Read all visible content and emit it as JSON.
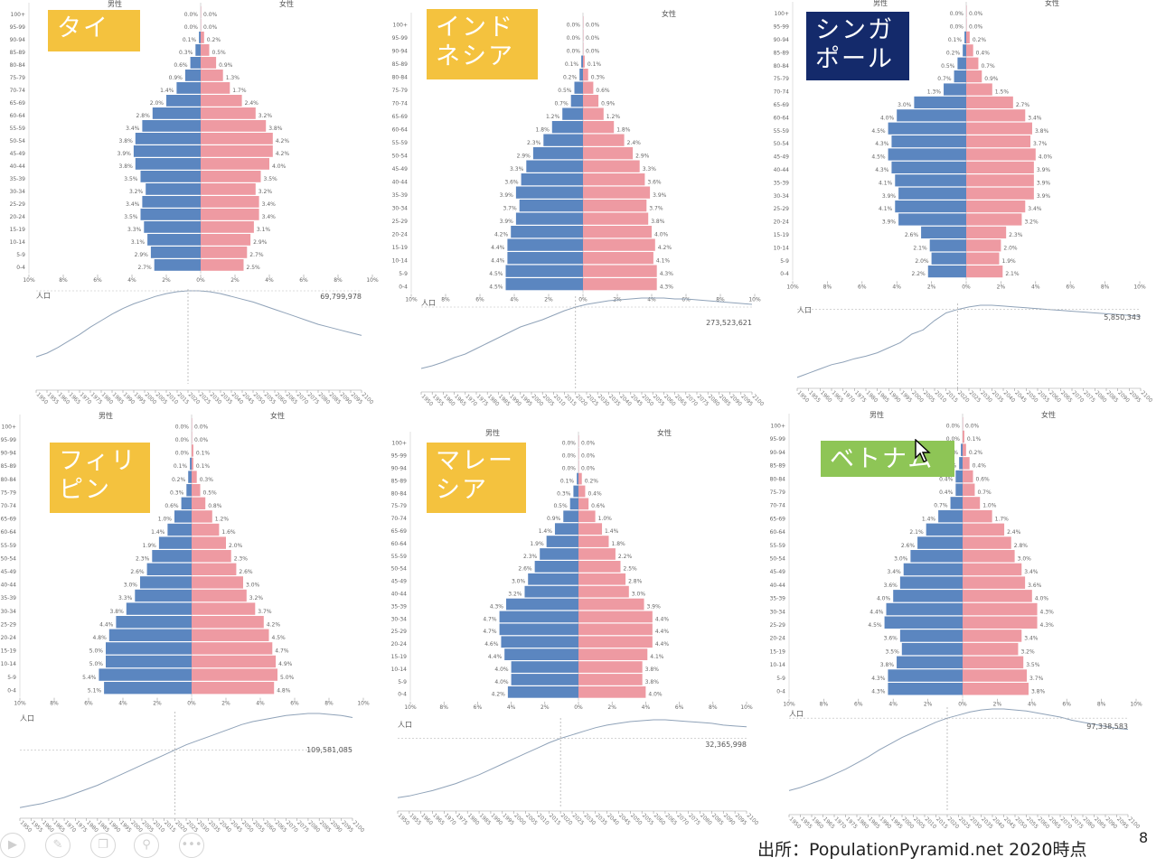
{
  "source_text": "出所：PopulationPyramid.net 2020時点",
  "page_number": "8",
  "colors": {
    "male": "#5b86c0",
    "female": "#ee9aa2",
    "line": "#8fa2b8"
  },
  "toolbar_icons": [
    "play-icon",
    "pen-icon",
    "copy-icon",
    "zoom-icon",
    "more-icon"
  ],
  "chart_data": [
    {
      "type": "pyramid",
      "country": "タイ",
      "label_bg": "#f4c23e",
      "label_color": "#ffffff",
      "male_label": "男性",
      "female_label": "女性",
      "age_groups": [
        "100+",
        "95-99",
        "90-94",
        "85-89",
        "80-84",
        "75-79",
        "70-74",
        "65-69",
        "60-64",
        "55-59",
        "50-54",
        "45-49",
        "40-44",
        "35-39",
        "30-34",
        "25-29",
        "20-24",
        "15-19",
        "10-14",
        "5-9",
        "0-4"
      ],
      "male": [
        0.0,
        0.0,
        0.1,
        0.3,
        0.6,
        0.9,
        1.4,
        2.0,
        2.8,
        3.4,
        3.8,
        3.9,
        3.8,
        3.5,
        3.2,
        3.4,
        3.5,
        3.3,
        3.1,
        2.9,
        2.7
      ],
      "female": [
        0.0,
        0.0,
        0.2,
        0.5,
        0.9,
        1.3,
        1.7,
        2.4,
        3.2,
        3.8,
        4.2,
        4.2,
        4.0,
        3.5,
        3.2,
        3.4,
        3.4,
        3.1,
        2.9,
        2.7,
        2.5
      ],
      "x_ticks": [
        "10%",
        "8%",
        "6%",
        "4%",
        "2%",
        "0%",
        "2%",
        "4%",
        "6%",
        "8%",
        "10%"
      ],
      "population_label": "人口",
      "population_value": "69,799,978",
      "years": [
        "1950",
        "1955",
        "1960",
        "1965",
        "1970",
        "1975",
        "1980",
        "1985",
        "1990",
        "1995",
        "2000",
        "2005",
        "2010",
        "2015",
        "2020",
        "2025",
        "2030",
        "2035",
        "2040",
        "2045",
        "2050",
        "2055",
        "2060",
        "2065",
        "2070",
        "2075",
        "2080",
        "2085",
        "2090",
        "2095",
        "2100"
      ],
      "population_trend": [
        0.29,
        0.33,
        0.39,
        0.46,
        0.53,
        0.61,
        0.68,
        0.75,
        0.81,
        0.86,
        0.9,
        0.94,
        0.97,
        0.99,
        1.0,
        1.0,
        0.99,
        0.97,
        0.94,
        0.91,
        0.88,
        0.84,
        0.8,
        0.76,
        0.72,
        0.68,
        0.64,
        0.61,
        0.58,
        0.55,
        0.52
      ]
    },
    {
      "type": "pyramid",
      "country": "インド\nネシア",
      "label_bg": "#f4c23e",
      "label_color": "#ffffff",
      "male_label": "男性",
      "female_label": "女性",
      "age_groups": [
        "100+",
        "95-99",
        "90-94",
        "85-89",
        "80-84",
        "75-79",
        "70-74",
        "65-69",
        "60-64",
        "55-59",
        "50-54",
        "45-49",
        "40-44",
        "35-39",
        "30-34",
        "25-29",
        "20-24",
        "15-19",
        "10-14",
        "5-9",
        "0-4"
      ],
      "male": [
        0.0,
        0.0,
        0.0,
        0.1,
        0.2,
        0.5,
        0.7,
        1.2,
        1.8,
        2.3,
        2.9,
        3.3,
        3.6,
        3.9,
        3.7,
        3.9,
        4.2,
        4.4,
        4.4,
        4.5,
        4.5
      ],
      "female": [
        0.0,
        0.0,
        0.0,
        0.1,
        0.3,
        0.6,
        0.9,
        1.2,
        1.8,
        2.4,
        2.9,
        3.3,
        3.6,
        3.9,
        3.7,
        3.8,
        4.0,
        4.2,
        4.1,
        4.3,
        4.3
      ],
      "x_ticks": [
        "10%",
        "8%",
        "6%",
        "4%",
        "2%",
        "0%",
        "2%",
        "4%",
        "6%",
        "8%",
        "10%"
      ],
      "population_label": "人口",
      "population_value": "273,523,621",
      "years": [
        "1950",
        "1955",
        "1960",
        "1965",
        "1970",
        "1975",
        "1980",
        "1985",
        "1990",
        "1995",
        "2000",
        "2005",
        "2010",
        "2015",
        "2020",
        "2025",
        "2030",
        "2035",
        "2040",
        "2045",
        "2050",
        "2055",
        "2060",
        "2065",
        "2070",
        "2075",
        "2080",
        "2085",
        "2090",
        "2095",
        "2100"
      ],
      "population_trend": [
        0.22,
        0.25,
        0.29,
        0.34,
        0.38,
        0.44,
        0.5,
        0.56,
        0.62,
        0.68,
        0.72,
        0.76,
        0.81,
        0.86,
        0.9,
        0.93,
        0.95,
        0.97,
        0.98,
        0.99,
        1.0,
        1.0,
        1.0,
        0.99,
        0.99,
        0.98,
        0.97,
        0.96,
        0.95,
        0.94,
        0.93
      ]
    },
    {
      "type": "pyramid",
      "country": "シンガ\nポール",
      "label_bg": "#142a6b",
      "label_color": "#ffffff",
      "male_label": "男性",
      "female_label": "女性",
      "age_groups": [
        "100+",
        "95-99",
        "90-94",
        "85-89",
        "80-84",
        "75-79",
        "70-74",
        "65-69",
        "60-64",
        "55-59",
        "50-54",
        "45-49",
        "40-44",
        "35-39",
        "30-34",
        "25-29",
        "20-24",
        "15-19",
        "10-14",
        "5-9",
        "0-4"
      ],
      "male": [
        0.0,
        0.0,
        0.1,
        0.2,
        0.5,
        0.7,
        1.3,
        3.0,
        4.0,
        4.5,
        4.3,
        4.5,
        4.3,
        4.1,
        3.9,
        4.1,
        3.9,
        2.6,
        2.1,
        2.0,
        2.2
      ],
      "female": [
        0.0,
        0.0,
        0.2,
        0.4,
        0.7,
        0.9,
        1.5,
        2.7,
        3.4,
        3.8,
        3.7,
        4.0,
        3.9,
        3.9,
        3.9,
        3.4,
        3.2,
        2.3,
        2.0,
        1.9,
        2.1
      ],
      "x_ticks": [
        "10%",
        "8%",
        "6%",
        "4%",
        "2%",
        "0%",
        "2%",
        "4%",
        "6%",
        "8%",
        "10%"
      ],
      "population_label": "人口",
      "population_value": "5,850,343",
      "years": [
        "1950",
        "1955",
        "1960",
        "1965",
        "1970",
        "1975",
        "1980",
        "1985",
        "1990",
        "1995",
        "2000",
        "2005",
        "2010",
        "2015",
        "2020",
        "2025",
        "2030",
        "2035",
        "2040",
        "2045",
        "2050",
        "2055",
        "2060",
        "2065",
        "2070",
        "2075",
        "2080",
        "2085",
        "2090",
        "2095",
        "2100"
      ],
      "population_trend": [
        0.15,
        0.2,
        0.25,
        0.3,
        0.33,
        0.37,
        0.4,
        0.44,
        0.5,
        0.56,
        0.66,
        0.71,
        0.82,
        0.91,
        0.95,
        0.98,
        1.0,
        1.0,
        0.99,
        0.98,
        0.97,
        0.96,
        0.95,
        0.94,
        0.93,
        0.92,
        0.91,
        0.9,
        0.89,
        0.88,
        0.87
      ]
    },
    {
      "type": "pyramid",
      "country": "フィリ\nピン",
      "label_bg": "#f4c23e",
      "label_color": "#ffffff",
      "male_label": "男性",
      "female_label": "女性",
      "age_groups": [
        "100+",
        "95-99",
        "90-94",
        "85-89",
        "80-84",
        "75-79",
        "70-74",
        "65-69",
        "60-64",
        "55-59",
        "50-54",
        "45-49",
        "40-44",
        "35-39",
        "30-34",
        "25-29",
        "20-24",
        "15-19",
        "10-14",
        "5-9",
        "0-4"
      ],
      "male": [
        0.0,
        0.0,
        0.0,
        0.1,
        0.2,
        0.3,
        0.6,
        1.0,
        1.4,
        1.9,
        2.3,
        2.6,
        3.0,
        3.3,
        3.8,
        4.4,
        4.8,
        5.0,
        5.0,
        5.4,
        5.1
      ],
      "female": [
        0.0,
        0.0,
        0.1,
        0.1,
        0.3,
        0.5,
        0.8,
        1.2,
        1.6,
        2.0,
        2.3,
        2.6,
        3.0,
        3.2,
        3.7,
        4.2,
        4.5,
        4.7,
        4.9,
        5.0,
        4.8
      ],
      "x_ticks": [
        "10%",
        "8%",
        "6%",
        "4%",
        "2%",
        "0%",
        "2%",
        "4%",
        "6%",
        "8%",
        "10%"
      ],
      "population_label": "人口",
      "population_value": "109,581,085",
      "years": [
        "1950",
        "1955",
        "1960",
        "1965",
        "1970",
        "1975",
        "1980",
        "1985",
        "1990",
        "1995",
        "2000",
        "2005",
        "2010",
        "2015",
        "2020",
        "2025",
        "2030",
        "2035",
        "2040",
        "2045",
        "2050",
        "2055",
        "2060",
        "2065",
        "2070",
        "2075",
        "2080",
        "2085",
        "2090",
        "2095",
        "2100"
      ],
      "population_trend": [
        0.07,
        0.09,
        0.11,
        0.14,
        0.17,
        0.21,
        0.25,
        0.29,
        0.34,
        0.39,
        0.44,
        0.49,
        0.54,
        0.59,
        0.64,
        0.69,
        0.73,
        0.77,
        0.81,
        0.85,
        0.89,
        0.92,
        0.94,
        0.96,
        0.98,
        0.99,
        1.0,
        1.0,
        0.99,
        0.98,
        0.96
      ]
    },
    {
      "type": "pyramid",
      "country": "マレー\nシア",
      "label_bg": "#f4c23e",
      "label_color": "#ffffff",
      "male_label": "男性",
      "female_label": "女性",
      "age_groups": [
        "100+",
        "95-99",
        "90-94",
        "85-89",
        "80-84",
        "75-79",
        "70-74",
        "65-69",
        "60-64",
        "55-59",
        "50-54",
        "45-49",
        "40-44",
        "35-39",
        "30-34",
        "25-29",
        "20-24",
        "15-19",
        "10-14",
        "5-9",
        "0-4"
      ],
      "male": [
        0.0,
        0.0,
        0.0,
        0.1,
        0.3,
        0.5,
        0.9,
        1.4,
        1.9,
        2.3,
        2.6,
        3.0,
        3.2,
        4.3,
        4.7,
        4.7,
        4.6,
        4.4,
        4.0,
        4.0,
        4.2
      ],
      "female": [
        0.0,
        0.0,
        0.0,
        0.2,
        0.4,
        0.6,
        1.0,
        1.4,
        1.8,
        2.2,
        2.5,
        2.8,
        3.0,
        3.9,
        4.4,
        4.4,
        4.4,
        4.1,
        3.8,
        3.8,
        4.0
      ],
      "x_ticks": [
        "10%",
        "8%",
        "6%",
        "4%",
        "2%",
        "0%",
        "2%",
        "4%",
        "6%",
        "8%",
        "10%"
      ],
      "population_label": "人口",
      "population_value": "32,365,998",
      "years": [
        "1950",
        "1955",
        "1960",
        "1965",
        "1970",
        "1975",
        "1980",
        "1985",
        "1990",
        "1995",
        "2000",
        "2005",
        "2010",
        "2015",
        "2020",
        "2025",
        "2030",
        "2035",
        "2040",
        "2045",
        "2050",
        "2055",
        "2060",
        "2065",
        "2070",
        "2075",
        "2080",
        "2085",
        "2090",
        "2095",
        "2100"
      ],
      "population_trend": [
        0.12,
        0.14,
        0.17,
        0.2,
        0.24,
        0.28,
        0.33,
        0.38,
        0.44,
        0.5,
        0.56,
        0.62,
        0.68,
        0.74,
        0.79,
        0.83,
        0.87,
        0.91,
        0.94,
        0.96,
        0.98,
        0.99,
        1.0,
        1.0,
        0.99,
        0.98,
        0.97,
        0.96,
        0.94,
        0.93,
        0.92
      ]
    },
    {
      "type": "pyramid",
      "country": "ベトナム",
      "label_bg": "#8ec556",
      "label_color": "#ffffff",
      "male_label": "男性",
      "female_label": "女性",
      "age_groups": [
        "100+",
        "95-99",
        "90-94",
        "85-89",
        "80-84",
        "75-79",
        "70-74",
        "65-69",
        "60-64",
        "55-59",
        "50-54",
        "45-49",
        "40-44",
        "35-39",
        "30-34",
        "25-29",
        "20-24",
        "15-19",
        "10-14",
        "5-9",
        "0-4"
      ],
      "male": [
        0.0,
        0.0,
        0.1,
        0.2,
        0.4,
        0.4,
        0.7,
        1.4,
        2.1,
        2.6,
        3.0,
        3.4,
        3.6,
        4.0,
        4.4,
        4.5,
        3.6,
        3.5,
        3.8,
        4.3,
        4.3
      ],
      "female": [
        0.0,
        0.1,
        0.2,
        0.4,
        0.6,
        0.7,
        1.0,
        1.7,
        2.4,
        2.8,
        3.0,
        3.4,
        3.6,
        4.0,
        4.3,
        4.3,
        3.4,
        3.2,
        3.5,
        3.7,
        3.8
      ],
      "x_ticks": [
        "10%",
        "8%",
        "6%",
        "4%",
        "2%",
        "0%",
        "2%",
        "4%",
        "6%",
        "8%",
        "10%"
      ],
      "population_label": "人口",
      "population_value": "97,338,583",
      "years": [
        "1950",
        "1955",
        "1960",
        "1965",
        "1970",
        "1975",
        "1980",
        "1985",
        "1990",
        "1995",
        "2000",
        "2005",
        "2010",
        "2015",
        "2020",
        "2025",
        "2030",
        "2035",
        "2040",
        "2045",
        "2050",
        "2055",
        "2060",
        "2065",
        "2070",
        "2075",
        "2080",
        "2085",
        "2090",
        "2095",
        "2100"
      ],
      "population_trend": [
        0.2,
        0.23,
        0.27,
        0.31,
        0.36,
        0.41,
        0.47,
        0.53,
        0.6,
        0.66,
        0.72,
        0.77,
        0.82,
        0.87,
        0.91,
        0.94,
        0.97,
        0.99,
        1.0,
        1.0,
        0.99,
        0.98,
        0.96,
        0.94,
        0.92,
        0.89,
        0.87,
        0.85,
        0.83,
        0.81,
        0.8
      ]
    }
  ]
}
